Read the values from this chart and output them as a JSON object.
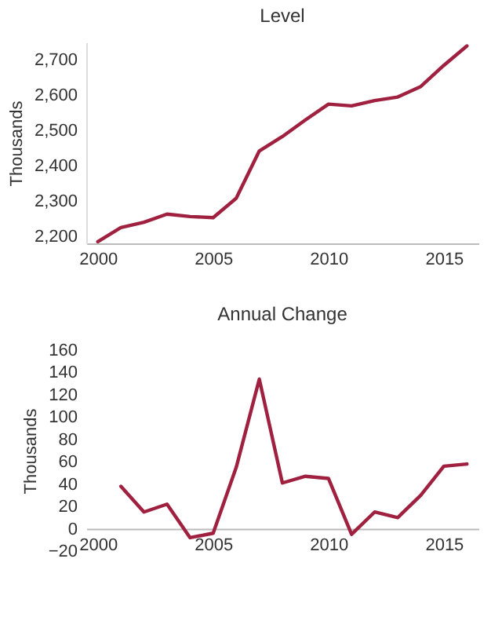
{
  "chart_data": [
    {
      "type": "line",
      "title": "Level",
      "ylabel": "Thousands",
      "x": [
        2000,
        2001,
        2002,
        2003,
        2004,
        2005,
        2006,
        2007,
        2008,
        2009,
        2010,
        2011,
        2012,
        2013,
        2014,
        2015,
        2016
      ],
      "series": [
        {
          "color": "#a0203f",
          "values": [
            2185,
            2225,
            2240,
            2263,
            2256,
            2253,
            2308,
            2442,
            2483,
            2530,
            2575,
            2570,
            2585,
            2595,
            2625,
            2685,
            2740
          ]
        }
      ],
      "xlim": [
        1999.5,
        2016.5
      ],
      "xticks": [
        2000,
        2005,
        2010,
        2015
      ],
      "ylim": [
        2180,
        2750
      ],
      "yticks": [
        {
          "value": 2200,
          "label": "2,200"
        },
        {
          "value": 2300,
          "label": "2,300"
        },
        {
          "value": 2400,
          "label": "2,400"
        },
        {
          "value": 2500,
          "label": "2,500"
        },
        {
          "value": 2600,
          "label": "2,600"
        },
        {
          "value": 2700,
          "label": "2,700"
        }
      ],
      "grid": false
    },
    {
      "type": "line",
      "title": "Annual Change",
      "ylabel": "Thousands",
      "x": [
        2001,
        2002,
        2003,
        2004,
        2005,
        2006,
        2007,
        2008,
        2009,
        2010,
        2011,
        2012,
        2013,
        2014,
        2015,
        2016
      ],
      "series": [
        {
          "color": "#a0203f",
          "values": [
            38,
            15,
            22,
            -8,
            -4,
            55,
            134,
            41,
            47,
            45,
            -5,
            15,
            10,
            30,
            56,
            58
          ]
        }
      ],
      "xlim": [
        1999.5,
        2016.5
      ],
      "xticks": [
        2000,
        2005,
        2010,
        2015
      ],
      "ylim": [
        -20,
        160
      ],
      "yticks": [
        -20,
        0,
        20,
        40,
        60,
        80,
        100,
        120,
        140,
        160
      ],
      "grid": false
    }
  ]
}
